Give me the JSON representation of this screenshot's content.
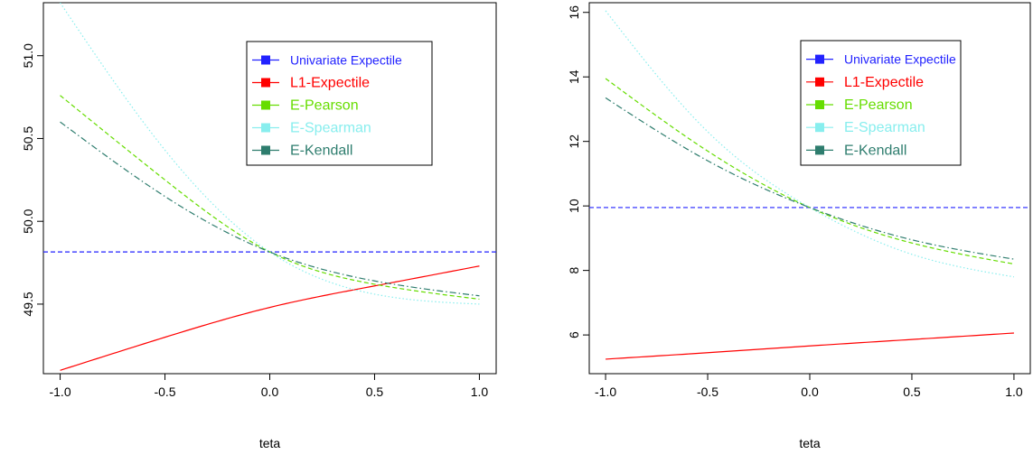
{
  "colors": {
    "univariate": "#2222ff",
    "l1": "#ff0000",
    "pearson": "#66dd00",
    "spearman": "#88eeee",
    "kendall": "#2e7d6e"
  },
  "chart_data": [
    {
      "type": "line",
      "title": "",
      "xlabel": "teta",
      "ylabel": "",
      "xlim": [
        -1.0,
        1.0
      ],
      "ylim": [
        49.08,
        51.32
      ],
      "xticks": [
        "-1.0",
        "-0.5",
        "0.0",
        "0.5",
        "1.0"
      ],
      "yticks": [
        "49.5",
        "50.0",
        "50.5",
        "51.0"
      ],
      "legend_position": "top-right",
      "series": [
        {
          "name": "Univariate Expectile",
          "x": [
            -1.0,
            1.0
          ],
          "y": [
            49.815,
            49.815
          ],
          "style": "dashed",
          "color": "#2222ff"
        },
        {
          "name": "L1-Expectile",
          "x": [
            -1.0,
            -0.5,
            0.0,
            0.5,
            1.0
          ],
          "y": [
            49.1,
            49.3,
            49.48,
            49.61,
            49.73
          ],
          "style": "solid",
          "color": "#ff0000"
        },
        {
          "name": "E-Pearson",
          "x": [
            -1.0,
            -0.5,
            0.0,
            0.5,
            1.0
          ],
          "y": [
            50.76,
            50.25,
            49.815,
            49.62,
            49.53
          ],
          "style": "dashed",
          "color": "#66dd00"
        },
        {
          "name": "E-Spearman",
          "x": [
            -1.0,
            -0.5,
            0.0,
            0.5,
            1.0
          ],
          "y": [
            51.32,
            50.43,
            49.815,
            49.56,
            49.5
          ],
          "style": "dotted",
          "color": "#88eeee"
        },
        {
          "name": "E-Kendall",
          "x": [
            -1.0,
            -0.5,
            0.0,
            0.5,
            1.0
          ],
          "y": [
            50.6,
            50.15,
            49.815,
            49.64,
            49.55
          ],
          "style": "dashdot",
          "color": "#2e7d6e"
        }
      ]
    },
    {
      "type": "line",
      "title": "",
      "xlabel": "teta",
      "ylabel": "",
      "xlim": [
        -1.0,
        1.0
      ],
      "ylim": [
        4.8,
        16.3
      ],
      "xticks": [
        "-1.0",
        "-0.5",
        "0.0",
        "0.5",
        "1.0"
      ],
      "yticks": [
        "6",
        "8",
        "10",
        "12",
        "14",
        "16"
      ],
      "legend_position": "top-right",
      "series": [
        {
          "name": "Univariate Expectile",
          "x": [
            -1.0,
            1.0
          ],
          "y": [
            9.95,
            9.95
          ],
          "style": "dashed",
          "color": "#2222ff"
        },
        {
          "name": "L1-Expectile",
          "x": [
            -1.0,
            -0.5,
            0.0,
            0.5,
            1.0
          ],
          "y": [
            5.25,
            5.45,
            5.66,
            5.86,
            6.06
          ],
          "style": "solid",
          "color": "#ff0000"
        },
        {
          "name": "E-Pearson",
          "x": [
            -1.0,
            -0.5,
            0.0,
            0.5,
            1.0
          ],
          "y": [
            13.95,
            11.7,
            9.95,
            8.85,
            8.2
          ],
          "style": "dashed",
          "color": "#66dd00"
        },
        {
          "name": "E-Spearman",
          "x": [
            -1.0,
            -0.5,
            0.0,
            0.5,
            1.0
          ],
          "y": [
            16.05,
            12.3,
            9.95,
            8.5,
            7.8
          ],
          "style": "dotted",
          "color": "#88eeee"
        },
        {
          "name": "E-Kendall",
          "x": [
            -1.0,
            -0.5,
            0.0,
            0.5,
            1.0
          ],
          "y": [
            13.35,
            11.4,
            9.95,
            8.95,
            8.35
          ],
          "style": "dashdot",
          "color": "#2e7d6e"
        }
      ]
    }
  ]
}
